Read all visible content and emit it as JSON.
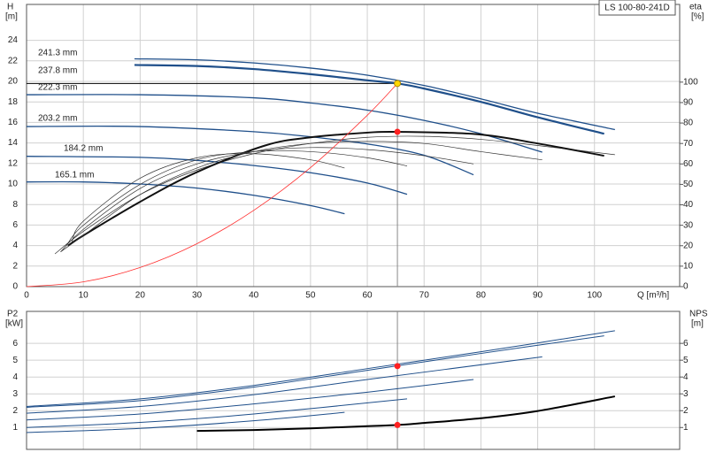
{
  "chart_data": [
    {
      "type": "line",
      "title": "LS 100-80-241D",
      "xlabel": "Q [m³/h]",
      "ylabel": "H",
      "yunit": "[m]",
      "y2label": "eta",
      "y2unit": "[%]",
      "xlim": [
        0,
        115
      ],
      "ylim": [
        0,
        27.5
      ],
      "y2lim": [
        0,
        138
      ],
      "xticks": [
        0,
        10,
        20,
        30,
        40,
        50,
        60,
        70,
        80,
        90,
        100
      ],
      "yticks": [
        0,
        2,
        4,
        6,
        8,
        10,
        12,
        14,
        16,
        18,
        20,
        22,
        24
      ],
      "y2ticks": [
        0,
        10,
        20,
        30,
        40,
        50,
        60,
        70,
        80,
        90,
        100
      ],
      "grid": true,
      "series": [
        {
          "name": "241.3 mm",
          "color": "#1f4f8a",
          "linewidth": 1.3,
          "x": [
            19,
            30,
            40,
            50,
            60,
            70,
            80,
            90,
            103.6
          ],
          "values": [
            22.2,
            22.1,
            21.8,
            21.3,
            20.6,
            19.6,
            18.3,
            16.9,
            15.3
          ]
        },
        {
          "name": "237.8 mm",
          "color": "#1f4f8a",
          "linewidth": 2.2,
          "x": [
            19,
            30,
            40,
            50,
            60,
            65.3,
            70,
            80,
            90,
            101.7
          ],
          "values": [
            21.6,
            21.5,
            21.2,
            20.7,
            20.1,
            19.8,
            19.3,
            18.0,
            16.5,
            14.9
          ]
        },
        {
          "name": "222.3 mm",
          "color": "#1f4f8a",
          "linewidth": 1.3,
          "x": [
            0,
            20,
            40,
            50,
            60,
            70,
            80,
            90.8
          ],
          "values": [
            18.7,
            18.7,
            18.4,
            17.9,
            17.2,
            16.2,
            14.9,
            13.1
          ]
        },
        {
          "name": "203.2 mm",
          "color": "#1f4f8a",
          "linewidth": 1.3,
          "x": [
            0,
            20,
            40,
            50,
            60,
            70,
            78.7
          ],
          "values": [
            15.6,
            15.6,
            15.1,
            14.6,
            13.9,
            12.8,
            10.9
          ]
        },
        {
          "name": "184.2 mm",
          "color": "#1f4f8a",
          "linewidth": 1.3,
          "x": [
            0,
            20,
            30,
            40,
            50,
            60,
            67
          ],
          "values": [
            12.7,
            12.6,
            12.3,
            11.8,
            11.1,
            10.1,
            9.0
          ]
        },
        {
          "name": "165.1 mm",
          "color": "#1f4f8a",
          "linewidth": 1.3,
          "x": [
            0,
            10,
            20,
            30,
            40,
            50,
            56
          ],
          "values": [
            10.2,
            10.2,
            10.0,
            9.6,
            8.9,
            7.9,
            7.1
          ]
        },
        {
          "axis": "y2",
          "color": "#333333",
          "linewidth": 0.7,
          "x": [
            5,
            10,
            20,
            30,
            40,
            50,
            60,
            70,
            80,
            90,
            103.6
          ],
          "values": [
            16,
            27,
            45,
            57,
            65,
            70,
            73,
            73.5,
            72,
            69,
            64.5
          ]
        },
        {
          "axis": "y2",
          "color": "#111111",
          "linewidth": 2,
          "x": [
            7.3,
            10,
            20,
            30,
            42,
            50,
            60,
            65.3,
            79.4,
            90,
            101.7
          ],
          "values": [
            20,
            25,
            41.5,
            56,
            69,
            73,
            75.3,
            75.7,
            74.5,
            70,
            64
          ]
        },
        {
          "axis": "y2",
          "color": "#333333",
          "linewidth": 0.7,
          "x": [
            6,
            10,
            20,
            30,
            40,
            50,
            60,
            70,
            80,
            90.8
          ],
          "values": [
            17,
            25,
            45,
            58,
            66,
            70,
            71,
            70,
            66,
            62
          ]
        },
        {
          "axis": "y2",
          "color": "#333333",
          "linewidth": 0.7,
          "x": [
            6,
            10,
            20,
            30,
            40,
            50,
            60,
            70,
            78.7
          ],
          "values": [
            17,
            28,
            48,
            60,
            66,
            68,
            67,
            64,
            60
          ]
        },
        {
          "axis": "y2",
          "color": "#333333",
          "linewidth": 0.7,
          "x": [
            7,
            10,
            20,
            30,
            40,
            50,
            60,
            67
          ],
          "values": [
            20,
            30,
            50,
            62,
            66,
            66,
            63,
            59
          ]
        },
        {
          "axis": "y2",
          "color": "#333333",
          "linewidth": 0.7,
          "x": [
            8,
            10,
            20,
            30,
            40,
            50,
            56
          ],
          "values": [
            22,
            32,
            53,
            63,
            65,
            62,
            58
          ]
        },
        {
          "color": "#ff3030",
          "linewidth": 0.8,
          "x": [
            0,
            10,
            20,
            30,
            40,
            50,
            60,
            65.3
          ],
          "values": [
            0,
            0.46,
            1.86,
            4.18,
            7.43,
            11.6,
            16.7,
            19.8
          ]
        }
      ],
      "points": [
        {
          "x": 65.3,
          "y": 19.8,
          "color": "#ffd700"
        },
        {
          "x": 65.3,
          "y": 75.7,
          "axis": "y2",
          "color": "#ff2020"
        }
      ]
    },
    {
      "type": "line",
      "ylabel": "P2",
      "yunit": "[kW]",
      "y2label": "NPSH",
      "y2unit": "[m]",
      "xlim": [
        0,
        115
      ],
      "ylim": [
        -0.3,
        7.9
      ],
      "y2lim": [
        -0.3,
        7.9
      ],
      "xticks": [
        0,
        10,
        20,
        30,
        40,
        50,
        60,
        70,
        80,
        90,
        100
      ],
      "yticks": [
        1,
        2,
        3,
        4,
        5,
        6
      ],
      "y2ticks": [
        1,
        2,
        3,
        4,
        5,
        6
      ],
      "grid": true,
      "series": [
        {
          "color": "#1f4f8a",
          "linewidth": 1,
          "x": [
            0,
            20,
            40,
            60,
            80,
            103.6
          ],
          "values": [
            2.25,
            2.7,
            3.5,
            4.5,
            5.5,
            6.75
          ]
        },
        {
          "color": "#1f4f8a",
          "linewidth": 1,
          "x": [
            0,
            20,
            40,
            60,
            80,
            101.7
          ],
          "values": [
            2.2,
            2.6,
            3.4,
            4.4,
            5.4,
            6.45
          ]
        },
        {
          "color": "#1f4f8a",
          "linewidth": 1,
          "x": [
            0,
            20,
            40,
            60,
            90.8
          ],
          "values": [
            1.85,
            2.25,
            2.95,
            3.85,
            5.2
          ]
        },
        {
          "color": "#1f4f8a",
          "linewidth": 1,
          "x": [
            0,
            20,
            40,
            60,
            78.7
          ],
          "values": [
            1.45,
            1.8,
            2.4,
            3.1,
            3.85
          ]
        },
        {
          "color": "#1f4f8a",
          "linewidth": 1,
          "x": [
            0,
            20,
            40,
            67
          ],
          "values": [
            1.0,
            1.3,
            1.8,
            2.7
          ]
        },
        {
          "color": "#1f4f8a",
          "linewidth": 1,
          "x": [
            0,
            20,
            40,
            56
          ],
          "values": [
            0.7,
            0.95,
            1.4,
            1.9
          ]
        },
        {
          "axis": "y2",
          "color": "#000000",
          "linewidth": 2,
          "x": [
            30,
            40,
            50,
            60,
            65.3,
            70,
            80,
            90,
            103.6
          ],
          "values": [
            0.8,
            0.85,
            0.95,
            1.08,
            1.15,
            1.27,
            1.55,
            1.98,
            2.85
          ]
        }
      ],
      "points": [
        {
          "x": 65.3,
          "y": 4.65,
          "color": "#ff2020"
        },
        {
          "x": 65.3,
          "y": 1.15,
          "axis": "y2",
          "color": "#ff2020"
        }
      ]
    }
  ]
}
